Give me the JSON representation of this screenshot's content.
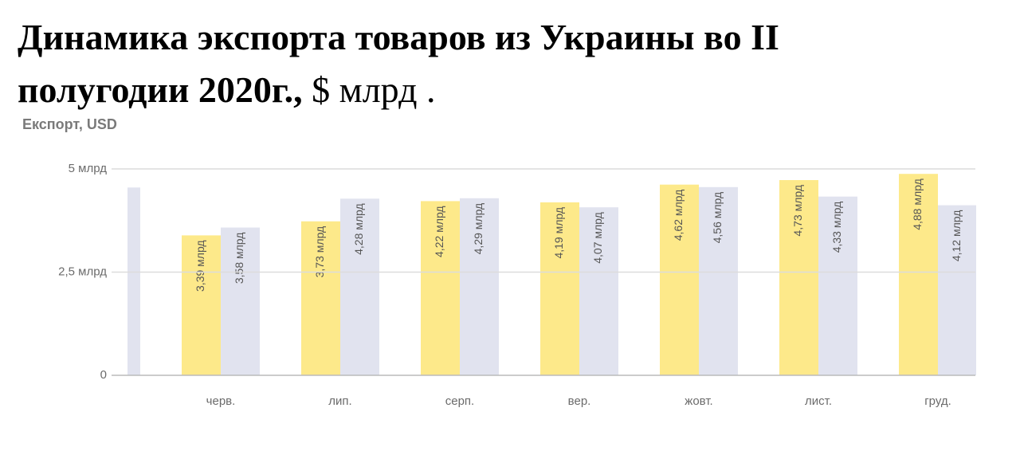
{
  "chart_data": {
    "type": "bar",
    "title": "Динамика экспорта товаров из Украины во II полугодии 2020г.,",
    "title_suffix": "$ млрд .",
    "subtitle": "Експорт, USD",
    "categories": [
      null,
      "черв.",
      "лип.",
      "серп.",
      "вер.",
      "жовт.",
      "лист.",
      "груд."
    ],
    "series": [
      {
        "color": "#fde98a",
        "values": [
          null,
          3.39,
          3.73,
          4.22,
          4.19,
          4.62,
          4.73,
          4.88
        ],
        "value_labels": [
          null,
          "3,39 млрд",
          "3,73 млрд",
          "4,22 млрд",
          "4,19 млрд",
          "4,62 млрд",
          "4,73 млрд",
          "4,88 млрд"
        ]
      },
      {
        "color": "#e1e3ef",
        "values": [
          4.55,
          3.58,
          4.28,
          4.29,
          4.07,
          4.56,
          4.33,
          4.12
        ],
        "value_labels": [
          null,
          "3,58 млрд",
          "4,28 млрд",
          "4,29 млрд",
          "4,07 млрд",
          "4,56 млрд",
          "4,33 млрд",
          "4,12 млрд"
        ]
      }
    ],
    "ylim": [
      0,
      5
    ],
    "yticks": [
      0,
      {
        "value": 2.5,
        "label": "2,5 млрд"
      },
      {
        "value": 5,
        "label": "5 млрд"
      }
    ],
    "grid": true
  }
}
